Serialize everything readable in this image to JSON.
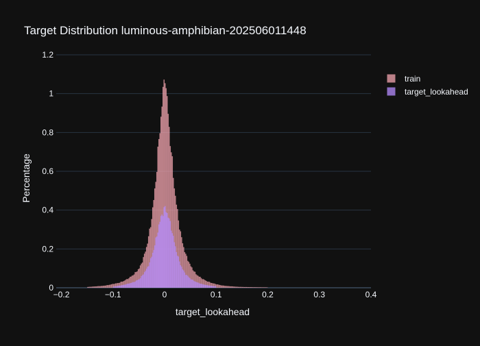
{
  "chart_data": {
    "type": "bar",
    "title": "Target Distribution luminous-amphibian-202506011448",
    "xlabel": "target_lookahead",
    "ylabel": "Percentage",
    "xlim": [
      -0.21,
      0.4
    ],
    "ylim": [
      0,
      1.2
    ],
    "x_ticks": [
      {
        "value": -0.2,
        "label": "−0.2"
      },
      {
        "value": -0.1,
        "label": "−0.1"
      },
      {
        "value": 0,
        "label": "0"
      },
      {
        "value": 0.1,
        "label": "0.1"
      },
      {
        "value": 0.2,
        "label": "0.2"
      },
      {
        "value": 0.3,
        "label": "0.3"
      },
      {
        "value": 0.4,
        "label": "0.4"
      }
    ],
    "y_ticks": [
      {
        "value": 0,
        "label": "0"
      },
      {
        "value": 0.2,
        "label": "0.2"
      },
      {
        "value": 0.4,
        "label": "0.4"
      },
      {
        "value": 0.6,
        "label": "0.6"
      },
      {
        "value": 0.8,
        "label": "0.8"
      },
      {
        "value": 1,
        "label": "1"
      },
      {
        "value": 1.2,
        "label": "1.2"
      }
    ],
    "grid": true,
    "barmode": "overlay",
    "legend_position": "top-right",
    "series": [
      {
        "name": "train",
        "color": "#f4a6b0",
        "opacity": 0.75,
        "x": [
          -0.15,
          -0.14,
          -0.13,
          -0.12,
          -0.11,
          -0.1,
          -0.09,
          -0.08,
          -0.07,
          -0.06,
          -0.05,
          -0.045,
          -0.04,
          -0.035,
          -0.03,
          -0.025,
          -0.02,
          -0.016,
          -0.012,
          -0.008,
          -0.006,
          -0.004,
          -0.002,
          0,
          0.002,
          0.004,
          0.006,
          0.008,
          0.012,
          0.016,
          0.02,
          0.025,
          0.03,
          0.035,
          0.04,
          0.05,
          0.06,
          0.07,
          0.08,
          0.09,
          0.1,
          0.11,
          0.12,
          0.13,
          0.14,
          0.15,
          0.17,
          0.2
        ],
        "values": [
          0.004,
          0.006,
          0.008,
          0.01,
          0.014,
          0.02,
          0.025,
          0.035,
          0.05,
          0.07,
          0.1,
          0.13,
          0.17,
          0.22,
          0.29,
          0.38,
          0.5,
          0.62,
          0.76,
          0.88,
          0.95,
          1.0,
          1.05,
          1.12,
          1.02,
          0.96,
          0.9,
          0.82,
          0.7,
          0.58,
          0.47,
          0.37,
          0.28,
          0.22,
          0.17,
          0.11,
          0.07,
          0.05,
          0.035,
          0.025,
          0.018,
          0.012,
          0.009,
          0.007,
          0.005,
          0.004,
          0.003,
          0.002
        ]
      },
      {
        "name": "target_lookahead",
        "color": "#b58cff",
        "opacity": 0.75,
        "x": [
          -0.1,
          -0.09,
          -0.08,
          -0.07,
          -0.06,
          -0.05,
          -0.045,
          -0.04,
          -0.035,
          -0.03,
          -0.025,
          -0.02,
          -0.016,
          -0.012,
          -0.008,
          -0.006,
          -0.004,
          -0.002,
          0,
          0.002,
          0.004,
          0.006,
          0.008,
          0.012,
          0.016,
          0.02,
          0.025,
          0.03,
          0.035,
          0.04,
          0.05,
          0.06,
          0.07,
          0.08,
          0.09,
          0.1
        ],
        "values": [
          0.006,
          0.01,
          0.015,
          0.022,
          0.03,
          0.045,
          0.06,
          0.08,
          0.1,
          0.13,
          0.17,
          0.22,
          0.27,
          0.32,
          0.36,
          0.38,
          0.39,
          0.4,
          0.41,
          0.4,
          0.385,
          0.37,
          0.35,
          0.31,
          0.26,
          0.21,
          0.16,
          0.12,
          0.09,
          0.07,
          0.045,
          0.03,
          0.02,
          0.014,
          0.01,
          0.007
        ]
      }
    ]
  }
}
